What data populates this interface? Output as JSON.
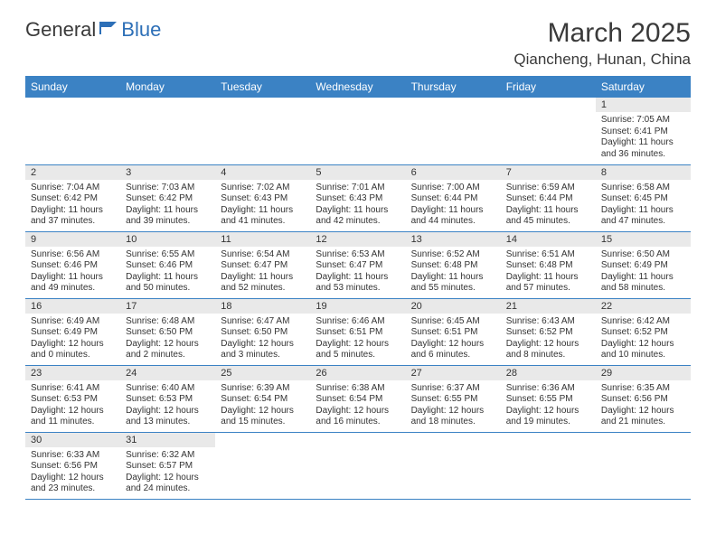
{
  "brand": {
    "word1": "General",
    "word2": "Blue"
  },
  "title": "March 2025",
  "location": "Qiancheng, Hunan, China",
  "colors": {
    "header_bg": "#3b82c4",
    "header_text": "#ffffff",
    "daynum_bg": "#e9e9e9",
    "border": "#3b82c4",
    "brand_blue": "#2d6fb7",
    "text": "#3a3a3a"
  },
  "calendar": {
    "type": "table",
    "columns": [
      "Sunday",
      "Monday",
      "Tuesday",
      "Wednesday",
      "Thursday",
      "Friday",
      "Saturday"
    ],
    "weeks": [
      [
        null,
        null,
        null,
        null,
        null,
        null,
        {
          "d": "1",
          "sr": "Sunrise: 7:05 AM",
          "ss": "Sunset: 6:41 PM",
          "dl": "Daylight: 11 hours and 36 minutes."
        }
      ],
      [
        {
          "d": "2",
          "sr": "Sunrise: 7:04 AM",
          "ss": "Sunset: 6:42 PM",
          "dl": "Daylight: 11 hours and 37 minutes."
        },
        {
          "d": "3",
          "sr": "Sunrise: 7:03 AM",
          "ss": "Sunset: 6:42 PM",
          "dl": "Daylight: 11 hours and 39 minutes."
        },
        {
          "d": "4",
          "sr": "Sunrise: 7:02 AM",
          "ss": "Sunset: 6:43 PM",
          "dl": "Daylight: 11 hours and 41 minutes."
        },
        {
          "d": "5",
          "sr": "Sunrise: 7:01 AM",
          "ss": "Sunset: 6:43 PM",
          "dl": "Daylight: 11 hours and 42 minutes."
        },
        {
          "d": "6",
          "sr": "Sunrise: 7:00 AM",
          "ss": "Sunset: 6:44 PM",
          "dl": "Daylight: 11 hours and 44 minutes."
        },
        {
          "d": "7",
          "sr": "Sunrise: 6:59 AM",
          "ss": "Sunset: 6:44 PM",
          "dl": "Daylight: 11 hours and 45 minutes."
        },
        {
          "d": "8",
          "sr": "Sunrise: 6:58 AM",
          "ss": "Sunset: 6:45 PM",
          "dl": "Daylight: 11 hours and 47 minutes."
        }
      ],
      [
        {
          "d": "9",
          "sr": "Sunrise: 6:56 AM",
          "ss": "Sunset: 6:46 PM",
          "dl": "Daylight: 11 hours and 49 minutes."
        },
        {
          "d": "10",
          "sr": "Sunrise: 6:55 AM",
          "ss": "Sunset: 6:46 PM",
          "dl": "Daylight: 11 hours and 50 minutes."
        },
        {
          "d": "11",
          "sr": "Sunrise: 6:54 AM",
          "ss": "Sunset: 6:47 PM",
          "dl": "Daylight: 11 hours and 52 minutes."
        },
        {
          "d": "12",
          "sr": "Sunrise: 6:53 AM",
          "ss": "Sunset: 6:47 PM",
          "dl": "Daylight: 11 hours and 53 minutes."
        },
        {
          "d": "13",
          "sr": "Sunrise: 6:52 AM",
          "ss": "Sunset: 6:48 PM",
          "dl": "Daylight: 11 hours and 55 minutes."
        },
        {
          "d": "14",
          "sr": "Sunrise: 6:51 AM",
          "ss": "Sunset: 6:48 PM",
          "dl": "Daylight: 11 hours and 57 minutes."
        },
        {
          "d": "15",
          "sr": "Sunrise: 6:50 AM",
          "ss": "Sunset: 6:49 PM",
          "dl": "Daylight: 11 hours and 58 minutes."
        }
      ],
      [
        {
          "d": "16",
          "sr": "Sunrise: 6:49 AM",
          "ss": "Sunset: 6:49 PM",
          "dl": "Daylight: 12 hours and 0 minutes."
        },
        {
          "d": "17",
          "sr": "Sunrise: 6:48 AM",
          "ss": "Sunset: 6:50 PM",
          "dl": "Daylight: 12 hours and 2 minutes."
        },
        {
          "d": "18",
          "sr": "Sunrise: 6:47 AM",
          "ss": "Sunset: 6:50 PM",
          "dl": "Daylight: 12 hours and 3 minutes."
        },
        {
          "d": "19",
          "sr": "Sunrise: 6:46 AM",
          "ss": "Sunset: 6:51 PM",
          "dl": "Daylight: 12 hours and 5 minutes."
        },
        {
          "d": "20",
          "sr": "Sunrise: 6:45 AM",
          "ss": "Sunset: 6:51 PM",
          "dl": "Daylight: 12 hours and 6 minutes."
        },
        {
          "d": "21",
          "sr": "Sunrise: 6:43 AM",
          "ss": "Sunset: 6:52 PM",
          "dl": "Daylight: 12 hours and 8 minutes."
        },
        {
          "d": "22",
          "sr": "Sunrise: 6:42 AM",
          "ss": "Sunset: 6:52 PM",
          "dl": "Daylight: 12 hours and 10 minutes."
        }
      ],
      [
        {
          "d": "23",
          "sr": "Sunrise: 6:41 AM",
          "ss": "Sunset: 6:53 PM",
          "dl": "Daylight: 12 hours and 11 minutes."
        },
        {
          "d": "24",
          "sr": "Sunrise: 6:40 AM",
          "ss": "Sunset: 6:53 PM",
          "dl": "Daylight: 12 hours and 13 minutes."
        },
        {
          "d": "25",
          "sr": "Sunrise: 6:39 AM",
          "ss": "Sunset: 6:54 PM",
          "dl": "Daylight: 12 hours and 15 minutes."
        },
        {
          "d": "26",
          "sr": "Sunrise: 6:38 AM",
          "ss": "Sunset: 6:54 PM",
          "dl": "Daylight: 12 hours and 16 minutes."
        },
        {
          "d": "27",
          "sr": "Sunrise: 6:37 AM",
          "ss": "Sunset: 6:55 PM",
          "dl": "Daylight: 12 hours and 18 minutes."
        },
        {
          "d": "28",
          "sr": "Sunrise: 6:36 AM",
          "ss": "Sunset: 6:55 PM",
          "dl": "Daylight: 12 hours and 19 minutes."
        },
        {
          "d": "29",
          "sr": "Sunrise: 6:35 AM",
          "ss": "Sunset: 6:56 PM",
          "dl": "Daylight: 12 hours and 21 minutes."
        }
      ],
      [
        {
          "d": "30",
          "sr": "Sunrise: 6:33 AM",
          "ss": "Sunset: 6:56 PM",
          "dl": "Daylight: 12 hours and 23 minutes."
        },
        {
          "d": "31",
          "sr": "Sunrise: 6:32 AM",
          "ss": "Sunset: 6:57 PM",
          "dl": "Daylight: 12 hours and 24 minutes."
        },
        null,
        null,
        null,
        null,
        null
      ]
    ]
  }
}
